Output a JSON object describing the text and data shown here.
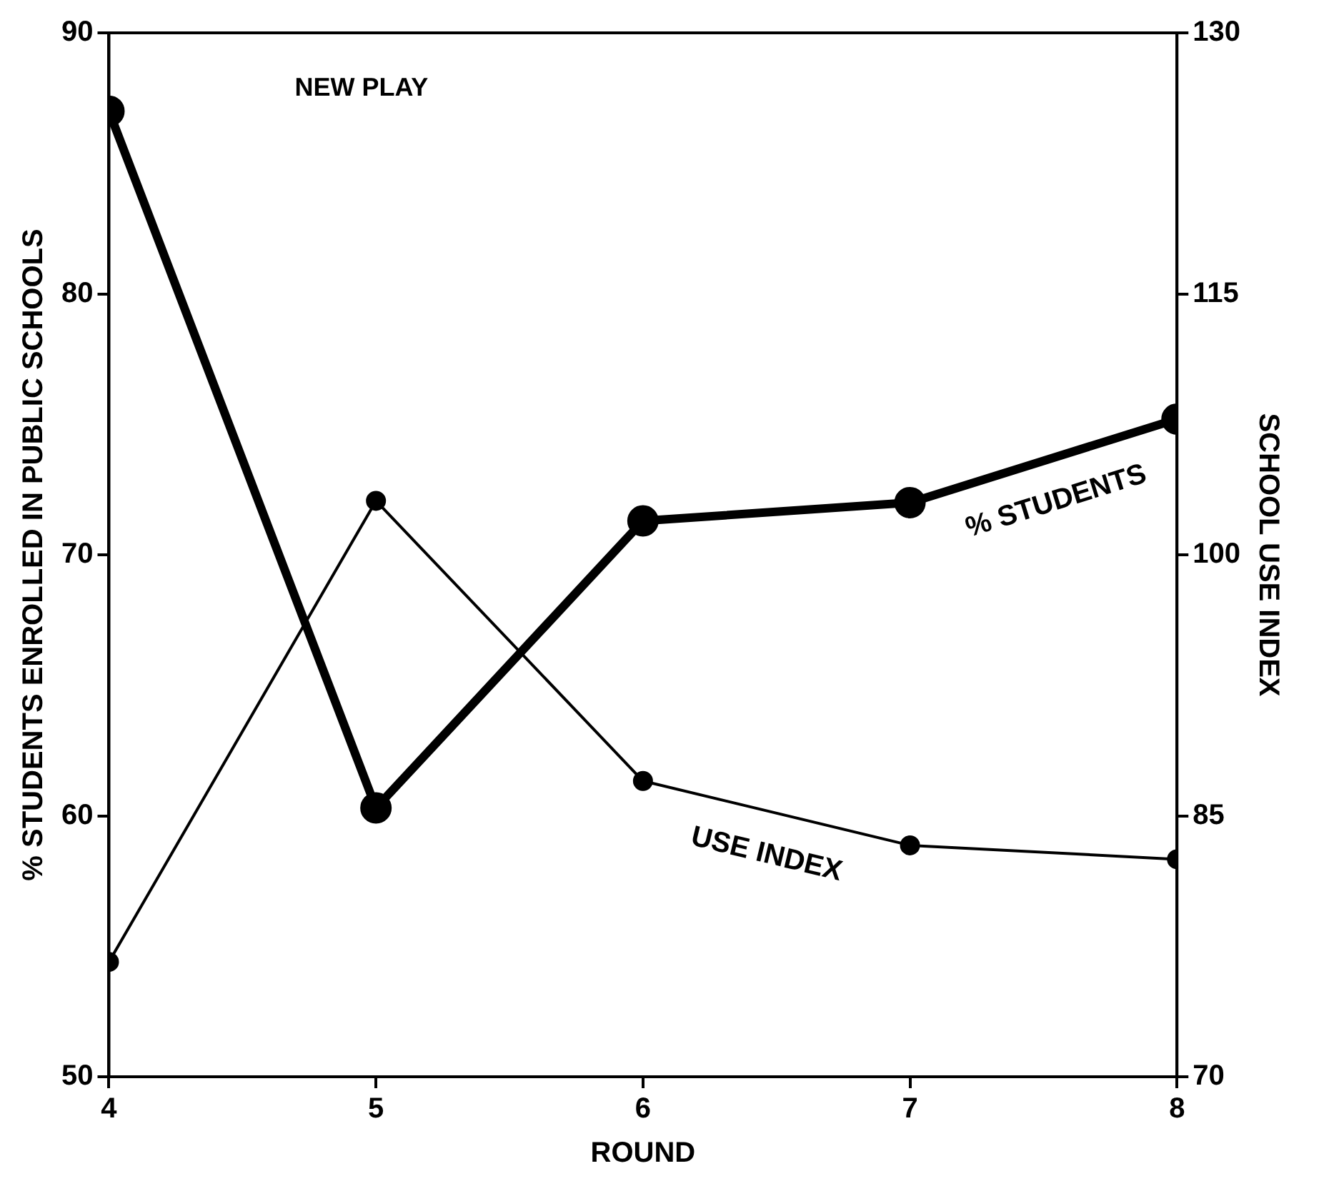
{
  "chart_data": {
    "type": "line",
    "xlabel": "ROUND",
    "ylabel": "% STUDENTS ENROLLED IN PUBLIC SCHOOLS",
    "y2label": "SCHOOL USE INDEX",
    "annotations": [
      "NEW PLAY"
    ],
    "x": [
      4,
      5,
      6,
      7,
      8
    ],
    "series": [
      {
        "name": "% STUDENTS",
        "color": "#000000",
        "values": [
          87.0,
          60.3,
          71.3,
          72.0,
          75.2
        ]
      },
      {
        "name": "USE INDEX",
        "color": "#000000",
        "axis": "y2",
        "values": [
          76.6,
          103.1,
          87.0,
          83.3,
          82.5
        ]
      }
    ],
    "xlim": [
      4,
      8
    ],
    "xticks": [
      4,
      5,
      6,
      7,
      8
    ],
    "ylim": [
      50,
      90
    ],
    "yticks": [
      50,
      60,
      70,
      80,
      90
    ],
    "y2lim": [
      70,
      130
    ],
    "y2ticks": [
      70,
      85,
      100,
      115,
      130
    ],
    "marker": "circle",
    "line_style": "solid"
  }
}
